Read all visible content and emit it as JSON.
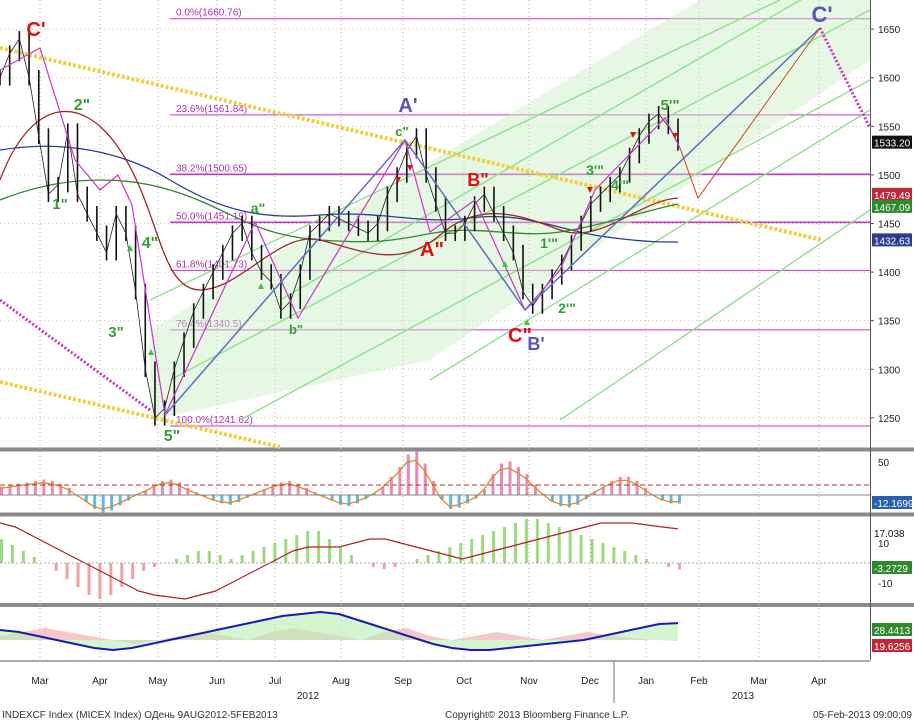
{
  "chart_data": [
    {
      "type": "line",
      "title": "INDEXCF Index (MICEX Index)",
      "x_ticks": [
        "Mar",
        "Apr",
        "May",
        "Jun",
        "Jul",
        "Aug",
        "Sep",
        "Oct",
        "Nov",
        "Dec",
        "Jan",
        "Feb",
        "Mar",
        "Apr"
      ],
      "year_labels": [
        "2012",
        "2013"
      ],
      "y_ticks": [
        1250,
        1300,
        1350,
        1400,
        1450,
        1500,
        1550,
        1600,
        1650
      ],
      "ylim": [
        1220,
        1680
      ],
      "grid": true,
      "series": [
        {
          "values": [
            1600,
            1625,
            1640,
            1600,
            1540,
            1480,
            1490,
            1545,
            1480,
            1460,
            1440,
            1420,
            1460,
            1440,
            1380,
            1300,
            1250,
            1260,
            1300,
            1330,
            1360,
            1380,
            1400,
            1420,
            1440,
            1450,
            1420,
            1400,
            1390,
            1360,
            1370,
            1400,
            1440,
            1450,
            1460,
            1455,
            1450,
            1445,
            1440,
            1450,
            1480,
            1500,
            1525,
            1540,
            1500,
            1470,
            1440,
            1440,
            1450,
            1470,
            1480,
            1460,
            1440,
            1420,
            1380,
            1365,
            1380,
            1395,
            1410,
            1430,
            1450,
            1470,
            1480,
            1490,
            1500,
            1520,
            1540,
            1555,
            1563,
            1550,
            1533
          ]
        }
      ],
      "fib_levels": [
        {
          "label": "0.0%(1660.76)",
          "value": 1660.76
        },
        {
          "label": "23.6%(1561.84)",
          "value": 1561.84
        },
        {
          "label": "38.2%(1500.65)",
          "value": 1500.65
        },
        {
          "label": "50.0%(1451.19)",
          "value": 1451.19
        },
        {
          "label": "61.8%(1401.73)",
          "value": 1401.73
        },
        {
          "label": "76.4%(1340.5)",
          "value": 1340.5
        },
        {
          "label": "100.0%(1241.62)",
          "value": 1241.62
        }
      ],
      "wave_labels": [
        {
          "text": "C'",
          "color": "#dd1111"
        },
        {
          "text": "2\"",
          "color": "#33a033"
        },
        {
          "text": "1\"",
          "color": "#33a033"
        },
        {
          "text": "4\"",
          "color": "#33a033"
        },
        {
          "text": "3\"",
          "color": "#33a033"
        },
        {
          "text": "5\"",
          "color": "#33a033"
        },
        {
          "text": "a\"",
          "color": "#33a033"
        },
        {
          "text": "b\"",
          "color": "#33a033"
        },
        {
          "text": "A'",
          "color": "#5555bb"
        },
        {
          "text": "c\"",
          "color": "#33a033"
        },
        {
          "text": "A\"",
          "color": "#dd1111"
        },
        {
          "text": "B\"",
          "color": "#dd1111"
        },
        {
          "text": "C\"",
          "color": "#dd1111"
        },
        {
          "text": "B'",
          "color": "#5555bb"
        },
        {
          "text": "1'\"",
          "color": "#33a033"
        },
        {
          "text": "2'\"",
          "color": "#33a033"
        },
        {
          "text": "3'\"",
          "color": "#33a033"
        },
        {
          "text": "4'\"",
          "color": "#33a033"
        },
        {
          "text": "5'\"",
          "color": "#33a033"
        },
        {
          "text": "C'",
          "color": "#5555bb"
        }
      ],
      "value_tags": [
        {
          "text": "1533.20",
          "bg": "#111111",
          "fg": "#ffffff"
        },
        {
          "text": "1479.49",
          "bg": "#c0283a",
          "fg": "#ffffff"
        },
        {
          "text": "1467.09",
          "bg": "#2d8a2d",
          "fg": "#ffffff"
        },
        {
          "text": "1432.63",
          "bg": "#2a3d8f",
          "fg": "#ffffff"
        }
      ]
    },
    {
      "type": "bar",
      "y_ticks": [
        50
      ],
      "series": [
        {
          "values": [
            12,
            14,
            16,
            18,
            20,
            22,
            20,
            16,
            10,
            0,
            -10,
            -20,
            -25,
            -22,
            -15,
            -8,
            0,
            6,
            14,
            20,
            22,
            18,
            10,
            4,
            -2,
            -8,
            -12,
            -14,
            -10,
            -4,
            2,
            8,
            14,
            18,
            20,
            16,
            10,
            4,
            -2,
            -8,
            -14,
            -16,
            -12,
            -6,
            2,
            12,
            26,
            40,
            58,
            62,
            45,
            20,
            -6,
            -20,
            -18,
            -12,
            -5,
            8,
            30,
            45,
            48,
            40,
            30,
            15,
            2,
            -10,
            -16,
            -18,
            -14,
            -6,
            4,
            12,
            20,
            26,
            26,
            20,
            10,
            0,
            -8,
            -12,
            -12.17
          ]
        }
      ],
      "value_tags": [
        {
          "text": "-12.1699",
          "bg": "#2a5fb0",
          "fg": "#ffffff"
        }
      ]
    },
    {
      "type": "area",
      "y_ticks": [
        10,
        -10
      ],
      "series": [
        {
          "values": [
            12,
            9,
            6,
            3,
            0,
            -4,
            -8,
            -12,
            -16,
            -18,
            -16,
            -12,
            -8,
            -4,
            -2,
            0,
            2,
            4,
            6,
            6,
            4,
            2,
            4,
            6,
            8,
            10,
            12,
            14,
            16,
            16,
            12,
            8,
            4,
            0,
            -2,
            -3,
            -2,
            0,
            2,
            4,
            6,
            8,
            10,
            12,
            14,
            16,
            18,
            20,
            22,
            22,
            20,
            18,
            16,
            14,
            12,
            10,
            8,
            6,
            4,
            2,
            0,
            -2,
            -3.27
          ]
        },
        {
          "values": [
            20,
            18,
            14,
            10,
            6,
            2,
            -2,
            -6,
            -10,
            -14,
            -16,
            -17,
            -18,
            -16,
            -14,
            -10,
            -6,
            -2,
            2,
            6,
            8,
            8,
            8,
            10,
            12,
            12,
            10,
            8,
            6,
            4,
            2,
            4,
            6,
            8,
            10,
            12,
            14,
            16,
            18,
            20,
            20,
            20,
            19,
            18,
            17.04
          ]
        }
      ],
      "value_tags": [
        {
          "text": "17.038",
          "bg": "#ffffff",
          "fg": "#111111"
        },
        {
          "text": "-3.2729",
          "bg": "#2d8a2d",
          "fg": "#ffffff"
        }
      ]
    },
    {
      "type": "area",
      "series": [
        {
          "values": [
            25,
            24,
            22,
            20,
            18,
            16,
            15,
            16,
            18,
            20,
            22,
            24,
            26,
            28,
            30,
            32,
            33,
            34,
            33,
            30,
            27,
            24,
            21,
            18,
            16,
            15,
            15,
            16,
            17,
            18,
            19,
            20,
            22,
            24,
            26,
            28,
            28.44
          ]
        },
        {
          "values": [
            22,
            24,
            26,
            24,
            22,
            20,
            18,
            20,
            22,
            24,
            22,
            20,
            24,
            26,
            24,
            22,
            20,
            24,
            26,
            22,
            20,
            22,
            24,
            22,
            20,
            22,
            24,
            22,
            21,
            20,
            19.63
          ]
        }
      ],
      "value_tags": [
        {
          "text": "28.4413",
          "bg": "#2d8a2d",
          "fg": "#ffffff"
        },
        {
          "text": "19.6256",
          "bg": "#c0283a",
          "fg": "#ffffff"
        }
      ]
    }
  ],
  "footer": {
    "left": "INDEXCF Index (MICEX Index) ОДень 9AUG2012-5FEB2013",
    "center": "Copyright© 2013 Bloomberg Finance L.P.",
    "right": "05-Feb-2013 09:00:09"
  }
}
